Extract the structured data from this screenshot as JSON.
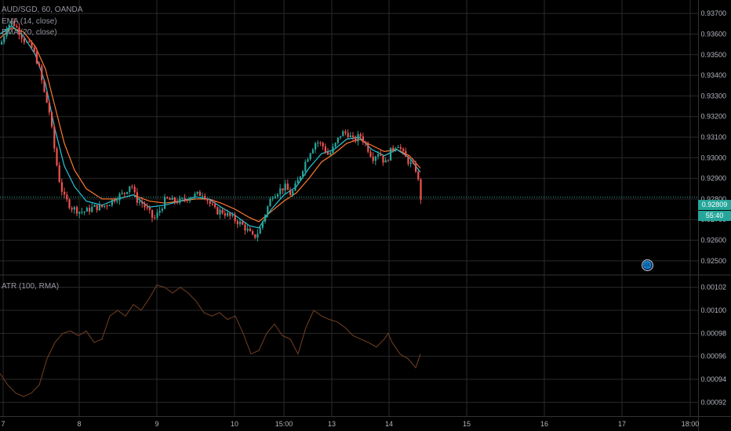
{
  "legend": {
    "symbol_line": "AUD/SGD, 60, OANDA",
    "ema_fast": "EMA (14, close)",
    "ema_slow": "EMA (20, close)",
    "atr": "ATR (100, RMA)"
  },
  "last_price": "0.92809",
  "countdown": "55:40",
  "colors": {
    "up": "#26a69a",
    "down": "#ef5350",
    "ema_fast": "#26c6da",
    "ema_slow": "#ff7a2f",
    "atr": "#6b3b1f",
    "grid": "#2a2a2a",
    "axis_text": "#b2b5be"
  },
  "icons": {
    "earth": "earth-globe-icon"
  },
  "chart_data": [
    {
      "type": "candlestick",
      "title": "AUD/SGD, 60, OANDA",
      "ylim": [
        0.9245,
        0.9375
      ],
      "y_ticks": [
        "0.93700",
        "0.93600",
        "0.93500",
        "0.93400",
        "0.93300",
        "0.93200",
        "0.93100",
        "0.93000",
        "0.92900",
        "0.92800",
        "0.92700",
        "0.92600",
        "0.92500"
      ],
      "x_ticks": [
        "7",
        "8",
        "9",
        "10",
        "15:00",
        "13",
        "14",
        "15",
        "16",
        "17",
        "18:00"
      ],
      "grid": true,
      "close_path": [
        [
          0,
          0.9355
        ],
        [
          8,
          0.9364
        ],
        [
          15,
          0.9366
        ],
        [
          22,
          0.9362
        ],
        [
          30,
          0.9357
        ],
        [
          40,
          0.9353
        ],
        [
          48,
          0.9345
        ],
        [
          55,
          0.9332
        ],
        [
          62,
          0.9322
        ],
        [
          68,
          0.9305
        ],
        [
          74,
          0.929
        ],
        [
          80,
          0.9281
        ],
        [
          90,
          0.9276
        ],
        [
          100,
          0.9274
        ],
        [
          108,
          0.9274
        ],
        [
          118,
          0.9276
        ],
        [
          128,
          0.9276
        ],
        [
          138,
          0.9278
        ],
        [
          148,
          0.9281
        ],
        [
          158,
          0.9283
        ],
        [
          166,
          0.9288
        ],
        [
          172,
          0.928
        ],
        [
          180,
          0.9278
        ],
        [
          188,
          0.9274
        ],
        [
          195,
          0.927
        ],
        [
          202,
          0.9274
        ],
        [
          210,
          0.928
        ],
        [
          220,
          0.9279
        ],
        [
          230,
          0.9279
        ],
        [
          240,
          0.9281
        ],
        [
          250,
          0.9282
        ],
        [
          258,
          0.9283
        ],
        [
          266,
          0.9278
        ],
        [
          274,
          0.9274
        ],
        [
          282,
          0.9274
        ],
        [
          290,
          0.9272
        ],
        [
          298,
          0.927
        ],
        [
          306,
          0.9268
        ],
        [
          314,
          0.9265
        ],
        [
          322,
          0.9261
        ],
        [
          330,
          0.9265
        ],
        [
          338,
          0.9274
        ],
        [
          346,
          0.9282
        ],
        [
          354,
          0.9284
        ],
        [
          362,
          0.9286
        ],
        [
          370,
          0.9282
        ],
        [
          378,
          0.9288
        ],
        [
          386,
          0.9296
        ],
        [
          394,
          0.9303
        ],
        [
          402,
          0.9308
        ],
        [
          410,
          0.9306
        ],
        [
          418,
          0.9301
        ],
        [
          426,
          0.9306
        ],
        [
          434,
          0.9312
        ],
        [
          442,
          0.9312
        ],
        [
          450,
          0.9308
        ],
        [
          458,
          0.9311
        ],
        [
          466,
          0.9306
        ],
        [
          474,
          0.93
        ],
        [
          482,
          0.9303
        ],
        [
          490,
          0.9297
        ],
        [
          498,
          0.9304
        ],
        [
          506,
          0.9307
        ],
        [
          514,
          0.9301
        ],
        [
          522,
          0.9297
        ],
        [
          530,
          0.9294
        ],
        [
          536,
          0.9279
        ],
        [
          540,
          0.92809
        ]
      ],
      "ema_fast_path": [
        [
          0,
          0.936
        ],
        [
          15,
          0.9364
        ],
        [
          30,
          0.9359
        ],
        [
          45,
          0.935
        ],
        [
          58,
          0.9336
        ],
        [
          70,
          0.9314
        ],
        [
          82,
          0.9296
        ],
        [
          95,
          0.9286
        ],
        [
          110,
          0.9279
        ],
        [
          130,
          0.9277
        ],
        [
          150,
          0.928
        ],
        [
          170,
          0.9282
        ],
        [
          190,
          0.9276
        ],
        [
          210,
          0.9277
        ],
        [
          230,
          0.9279
        ],
        [
          250,
          0.9281
        ],
        [
          266,
          0.928
        ],
        [
          282,
          0.9276
        ],
        [
          300,
          0.9272
        ],
        [
          318,
          0.9267
        ],
        [
          330,
          0.9266
        ],
        [
          346,
          0.9275
        ],
        [
          362,
          0.9282
        ],
        [
          378,
          0.9286
        ],
        [
          394,
          0.9295
        ],
        [
          410,
          0.9302
        ],
        [
          426,
          0.9304
        ],
        [
          442,
          0.9309
        ],
        [
          458,
          0.931
        ],
        [
          474,
          0.9304
        ],
        [
          490,
          0.9301
        ],
        [
          506,
          0.9304
        ],
        [
          522,
          0.93
        ],
        [
          536,
          0.9293
        ]
      ],
      "ema_slow_path": [
        [
          0,
          0.9358
        ],
        [
          15,
          0.9363
        ],
        [
          30,
          0.9361
        ],
        [
          45,
          0.9354
        ],
        [
          58,
          0.9343
        ],
        [
          70,
          0.9325
        ],
        [
          82,
          0.9307
        ],
        [
          95,
          0.9294
        ],
        [
          110,
          0.9285
        ],
        [
          130,
          0.928
        ],
        [
          150,
          0.928
        ],
        [
          170,
          0.9282
        ],
        [
          190,
          0.9279
        ],
        [
          210,
          0.9278
        ],
        [
          230,
          0.9279
        ],
        [
          250,
          0.928
        ],
        [
          266,
          0.928
        ],
        [
          282,
          0.9278
        ],
        [
          300,
          0.9275
        ],
        [
          318,
          0.9271
        ],
        [
          330,
          0.9269
        ],
        [
          346,
          0.9274
        ],
        [
          362,
          0.9279
        ],
        [
          378,
          0.9283
        ],
        [
          394,
          0.929
        ],
        [
          410,
          0.9298
        ],
        [
          426,
          0.9302
        ],
        [
          442,
          0.9307
        ],
        [
          458,
          0.9309
        ],
        [
          474,
          0.9306
        ],
        [
          490,
          0.9303
        ],
        [
          506,
          0.9304
        ],
        [
          522,
          0.9301
        ],
        [
          536,
          0.9295
        ]
      ]
    },
    {
      "type": "line",
      "title": "ATR (100, RMA)",
      "ylim": [
        0.00091,
        0.00103
      ],
      "y_ticks": [
        "0.00102",
        "0.00100",
        "0.00098",
        "0.00096",
        "0.00094",
        "0.00092"
      ],
      "grid": true,
      "series": [
        {
          "name": "ATR (100, RMA)",
          "points": [
            [
              0,
              0.000945
            ],
            [
              10,
              0.000935
            ],
            [
              20,
              0.000928
            ],
            [
              30,
              0.000925
            ],
            [
              40,
              0.000928
            ],
            [
              50,
              0.000935
            ],
            [
              60,
              0.000958
            ],
            [
              70,
              0.000972
            ],
            [
              80,
              0.00098
            ],
            [
              90,
              0.000982
            ],
            [
              100,
              0.000978
            ],
            [
              110,
              0.000982
            ],
            [
              120,
              0.000972
            ],
            [
              130,
              0.000975
            ],
            [
              140,
              0.000995
            ],
            [
              150,
              0.001
            ],
            [
              160,
              0.000995
            ],
            [
              170,
              0.001005
            ],
            [
              180,
              0.001
            ],
            [
              190,
              0.00101
            ],
            [
              200,
              0.001022
            ],
            [
              210,
              0.00102
            ],
            [
              220,
              0.001015
            ],
            [
              230,
              0.00102
            ],
            [
              240,
              0.001015
            ],
            [
              250,
              0.001008
            ],
            [
              260,
              0.000998
            ],
            [
              270,
              0.000995
            ],
            [
              280,
              0.000998
            ],
            [
              290,
              0.000992
            ],
            [
              300,
              0.000995
            ],
            [
              310,
              0.00098
            ],
            [
              320,
              0.000962
            ],
            [
              330,
              0.000965
            ],
            [
              340,
              0.00098
            ],
            [
              350,
              0.000988
            ],
            [
              360,
              0.000978
            ],
            [
              370,
              0.000975
            ],
            [
              380,
              0.000962
            ],
            [
              390,
              0.000985
            ],
            [
              400,
              0.001
            ],
            [
              410,
              0.000995
            ],
            [
              420,
              0.000992
            ],
            [
              430,
              0.00099
            ],
            [
              440,
              0.000985
            ],
            [
              450,
              0.000978
            ],
            [
              460,
              0.000975
            ],
            [
              470,
              0.000972
            ],
            [
              480,
              0.000968
            ],
            [
              490,
              0.000975
            ],
            [
              495,
              0.00098
            ],
            [
              500,
              0.000972
            ],
            [
              510,
              0.000962
            ],
            [
              520,
              0.000958
            ],
            [
              530,
              0.00095
            ],
            [
              536,
              0.000962
            ]
          ]
        }
      ]
    }
  ]
}
